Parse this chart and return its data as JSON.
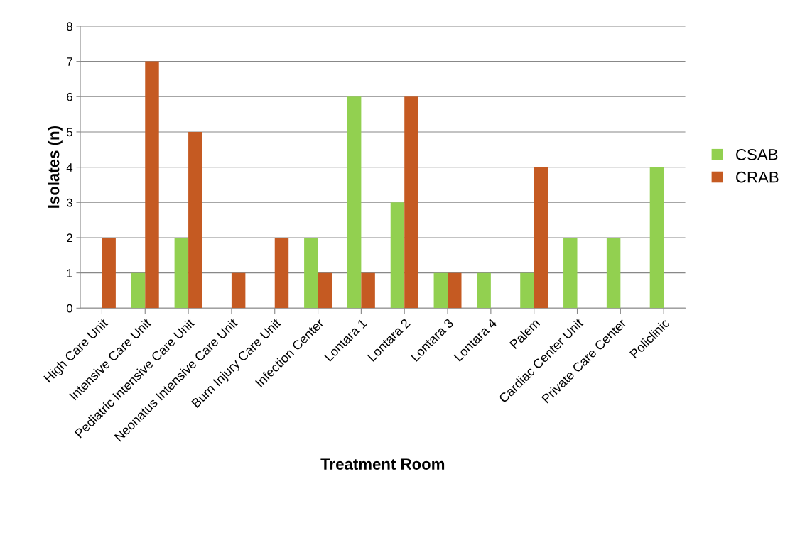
{
  "chart_data": {
    "type": "bar",
    "xlabel": "Treatment Room",
    "ylabel": "Isolates (n)",
    "categories": [
      "High Care Unit",
      "Intensive Care Unit",
      "Pediatric Intensive Care Unit",
      "Neonatus Intensive Care Unit",
      "Burn Injury Care Unit",
      "Infection Center",
      "Lontara 1",
      "Lontara 2",
      "Lontara 3",
      "Lontara 4",
      "Palem",
      "Cardiac Center Unit",
      "Private Care Center",
      "Policlinic"
    ],
    "series": [
      {
        "name": "CSAB",
        "color": "#92d050",
        "values": [
          0,
          1,
          2,
          0,
          0,
          2,
          6,
          3,
          1,
          1,
          1,
          2,
          2,
          4
        ]
      },
      {
        "name": "CRAB",
        "color": "#c55a22",
        "values": [
          2,
          7,
          5,
          1,
          2,
          1,
          1,
          6,
          1,
          0,
          4,
          0,
          0,
          0
        ]
      }
    ],
    "ylim": [
      0,
      8
    ],
    "yticks": [
      0,
      1,
      2,
      3,
      4,
      5,
      6,
      7,
      8
    ],
    "grid": "y",
    "legend": "right"
  }
}
